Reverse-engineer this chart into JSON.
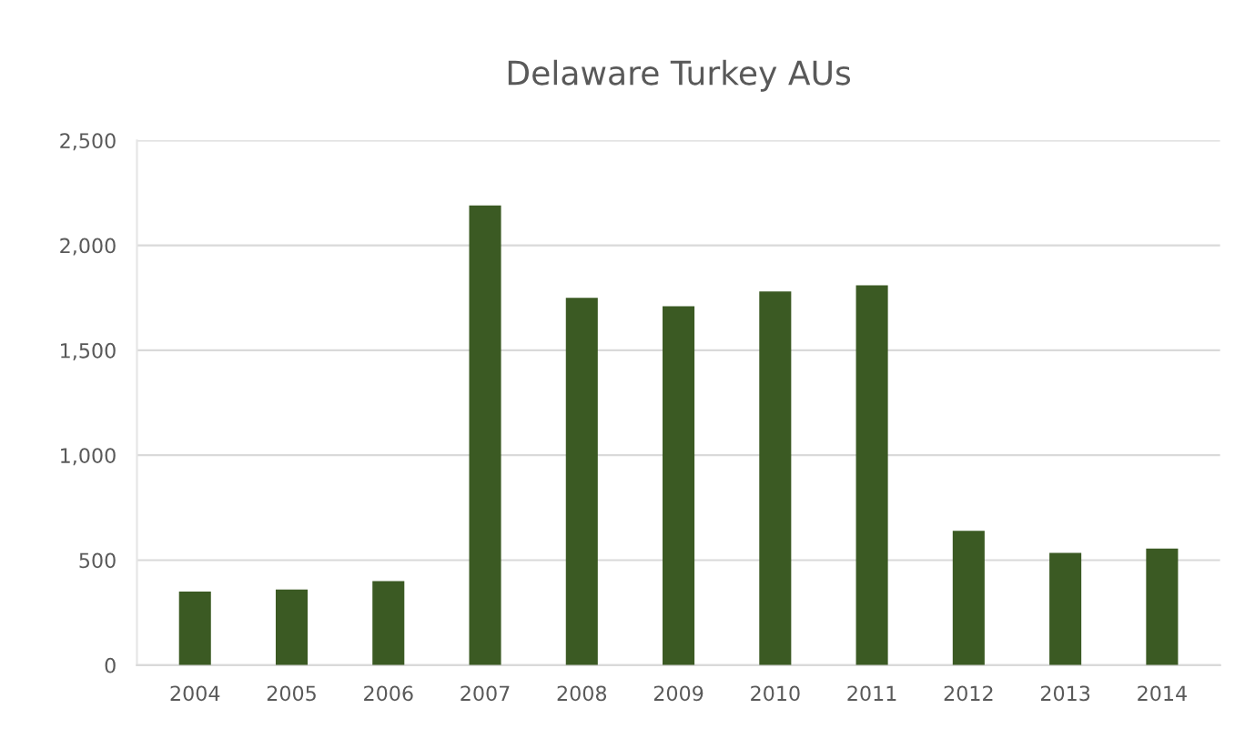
{
  "chart_data": {
    "type": "bar",
    "title": "Delaware Turkey AUs",
    "categories": [
      "2004",
      "2005",
      "2006",
      "2007",
      "2008",
      "2009",
      "2010",
      "2011",
      "2012",
      "2013",
      "2014"
    ],
    "values": [
      350,
      360,
      400,
      2190,
      1750,
      1710,
      1780,
      1810,
      640,
      535,
      555
    ],
    "color": "#3b5a23",
    "ylim": [
      0,
      2500
    ],
    "yticks": [
      {
        "value": 0,
        "label": "0"
      },
      {
        "value": 500,
        "label": "500"
      },
      {
        "value": 1000,
        "label": "1,000"
      },
      {
        "value": 1500,
        "label": "1,500"
      },
      {
        "value": 2000,
        "label": "2,000"
      },
      {
        "value": 2500,
        "label": "2,500"
      }
    ],
    "grid": "y"
  }
}
